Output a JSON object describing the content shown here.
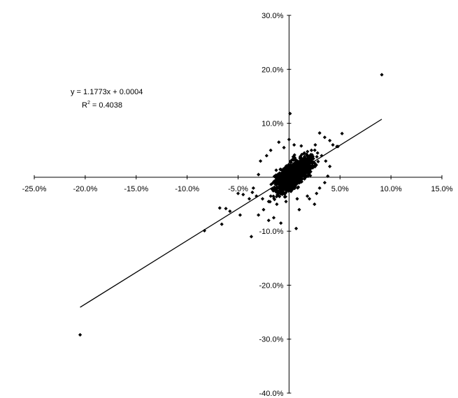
{
  "chart_data": {
    "type": "scatter",
    "title": "",
    "xlabel": "",
    "ylabel": "",
    "xlim": [
      -0.25,
      0.15
    ],
    "ylim": [
      -0.4,
      0.3
    ],
    "x_ticks": [
      -0.25,
      -0.2,
      -0.15,
      -0.1,
      -0.05,
      0.05,
      0.1,
      0.15
    ],
    "x_tick_labels": [
      "-25.0%",
      "-20.0%",
      "-15.0%",
      "-10.0%",
      "-5.0%",
      "5.0%",
      "10.0%",
      "15.0%"
    ],
    "y_ticks": [
      0.3,
      0.2,
      0.1,
      -0.1,
      -0.2,
      -0.3,
      -0.4
    ],
    "y_tick_labels": [
      "30.0%",
      "20.0%",
      "10.0%",
      "-10.0%",
      "-20.0%",
      "-30.0%",
      "-40.0%"
    ],
    "grid": false,
    "legend": "none",
    "marker": "diamond",
    "marker_color": "#000000",
    "trendline": {
      "type": "linear",
      "slope": 1.1773,
      "intercept": 0.0004,
      "x_range": [
        -0.205,
        0.091
      ],
      "equation_text": "y = 1.1773x + 0.0004",
      "r2_prefix": "R",
      "r2_superscript": "2",
      "r2_suffix": " = 0.4038"
    },
    "series": [
      {
        "points": [
          [
            0.091,
            0.19
          ],
          [
            0.001,
            0.118
          ],
          [
            0.052,
            0.081
          ],
          [
            0.047,
            0.057
          ],
          [
            0.048,
            0.057
          ],
          [
            0.035,
            0.074
          ],
          [
            0.03,
            0.082
          ],
          [
            0.04,
            0.068
          ],
          [
            0.043,
            0.06
          ],
          [
            0.007,
            -0.095
          ],
          [
            -0.205,
            -0.292
          ],
          [
            -0.037,
            -0.11
          ],
          [
            -0.083,
            -0.099
          ],
          [
            -0.066,
            -0.087
          ],
          [
            -0.062,
            -0.058
          ],
          [
            -0.068,
            -0.057
          ],
          [
            -0.048,
            -0.07
          ],
          [
            -0.058,
            -0.063
          ],
          [
            -0.039,
            -0.04
          ],
          [
            -0.045,
            -0.032
          ],
          [
            -0.05,
            -0.03
          ],
          [
            -0.02,
            -0.08
          ],
          [
            -0.03,
            -0.07
          ],
          [
            -0.025,
            -0.06
          ],
          [
            -0.015,
            -0.075
          ],
          [
            -0.008,
            -0.085
          ],
          [
            0.01,
            -0.06
          ],
          [
            0.02,
            -0.04
          ],
          [
            0.025,
            -0.05
          ],
          [
            -0.035,
            -0.02
          ],
          [
            -0.03,
            0.005
          ],
          [
            -0.028,
            0.03
          ],
          [
            -0.022,
            0.04
          ],
          [
            -0.018,
            0.05
          ],
          [
            -0.01,
            0.065
          ],
          [
            -0.005,
            0.055
          ],
          [
            0.0,
            0.07
          ],
          [
            0.005,
            0.06
          ],
          [
            0.012,
            0.058
          ],
          [
            0.015,
            0.045
          ],
          [
            0.022,
            0.05
          ],
          [
            0.028,
            0.045
          ],
          [
            0.032,
            0.04
          ],
          [
            0.036,
            0.03
          ],
          [
            0.04,
            0.02
          ],
          [
            0.038,
            0.002
          ],
          [
            0.035,
            -0.01
          ],
          [
            0.03,
            -0.02
          ],
          [
            0.027,
            -0.03
          ],
          [
            0.018,
            -0.035
          ],
          [
            0.008,
            -0.04
          ],
          [
            -0.003,
            -0.045
          ],
          [
            -0.012,
            -0.05
          ],
          [
            -0.02,
            -0.045
          ],
          [
            -0.026,
            -0.04
          ],
          [
            -0.032,
            -0.035
          ],
          [
            -0.036,
            -0.028
          ]
        ]
      }
    ]
  }
}
